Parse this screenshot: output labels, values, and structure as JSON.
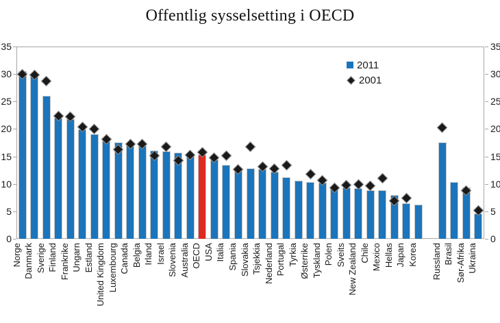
{
  "title": "Offentlig sysselsetting i OECD",
  "legend": {
    "items": [
      {
        "label": "2011",
        "marker": "square",
        "color": "#1b75bc"
      },
      {
        "label": "2001",
        "marker": "diamond",
        "color": "#1a1a1a"
      }
    ],
    "position": "upper-right-inside"
  },
  "colors": {
    "bar": "#1b75bc",
    "bar_highlight": "#dd2b21",
    "bar_border": "#c8c8c8",
    "marker": "#1a1a1a",
    "marker_border": "#9a9a9a",
    "axis": "#a6a6a6",
    "text": "#1a1a1a"
  },
  "chart_data": {
    "type": "bar",
    "title": "Offentlig sysselsetting i OECD",
    "xlabel": "",
    "ylabel": "",
    "ylim": [
      0,
      35
    ],
    "yticks": [
      0,
      5,
      10,
      15,
      20,
      25,
      30,
      35
    ],
    "grid": false,
    "dual_y_axis": true,
    "legend_position": "upper right inside plot",
    "highlight_category": "OECD",
    "gap_after_index": 33,
    "categories": [
      "Norge",
      "Danmark",
      "Sverige",
      "Finland",
      "Frankrike",
      "Ungarn",
      "Estland",
      "United Kingdom",
      "Luxembourg",
      "Canada",
      "Belgia",
      "Irland",
      "Israel",
      "Slovenia",
      "Australia",
      "OECD",
      "USA",
      "Italia",
      "Spania",
      "Slovakia",
      "Tsjekkia",
      "Nederland",
      "Portugal",
      "Tyrkia",
      "Østerrike",
      "Tyskland",
      "Polen",
      "Sveits",
      "New Zealand",
      "Chile",
      "Mexico",
      "Hellas",
      "Japan",
      "Korea",
      "Russland",
      "Brasil",
      "Sør-Afrika",
      "Ukraina"
    ],
    "series": [
      {
        "name": "2011",
        "type": "bar",
        "values": [
          30.5,
          29.6,
          26.0,
          22.0,
          21.8,
          19.9,
          19.1,
          17.8,
          17.6,
          17.1,
          16.9,
          16.1,
          15.9,
          15.7,
          15.4,
          15.3,
          14.4,
          13.4,
          12.9,
          12.8,
          12.7,
          12.2,
          11.2,
          10.6,
          10.4,
          10.2,
          9.5,
          9.3,
          9.2,
          8.9,
          8.8,
          8.0,
          6.5,
          6.2,
          17.6,
          10.4,
          9.3,
          4.6
        ]
      },
      {
        "name": "2001",
        "type": "scatter",
        "marker": "diamond",
        "values": [
          30.0,
          29.8,
          28.7,
          22.4,
          22.2,
          20.4,
          20.0,
          18.1,
          16.3,
          17.2,
          17.3,
          15.1,
          16.8,
          14.3,
          15.3,
          15.8,
          14.7,
          15.1,
          12.7,
          16.8,
          13.1,
          12.8,
          13.4,
          null,
          11.8,
          10.6,
          9.3,
          9.8,
          9.9,
          9.7,
          11.0,
          6.9,
          7.4,
          null,
          20.2,
          null,
          8.8,
          5.2
        ]
      }
    ]
  }
}
